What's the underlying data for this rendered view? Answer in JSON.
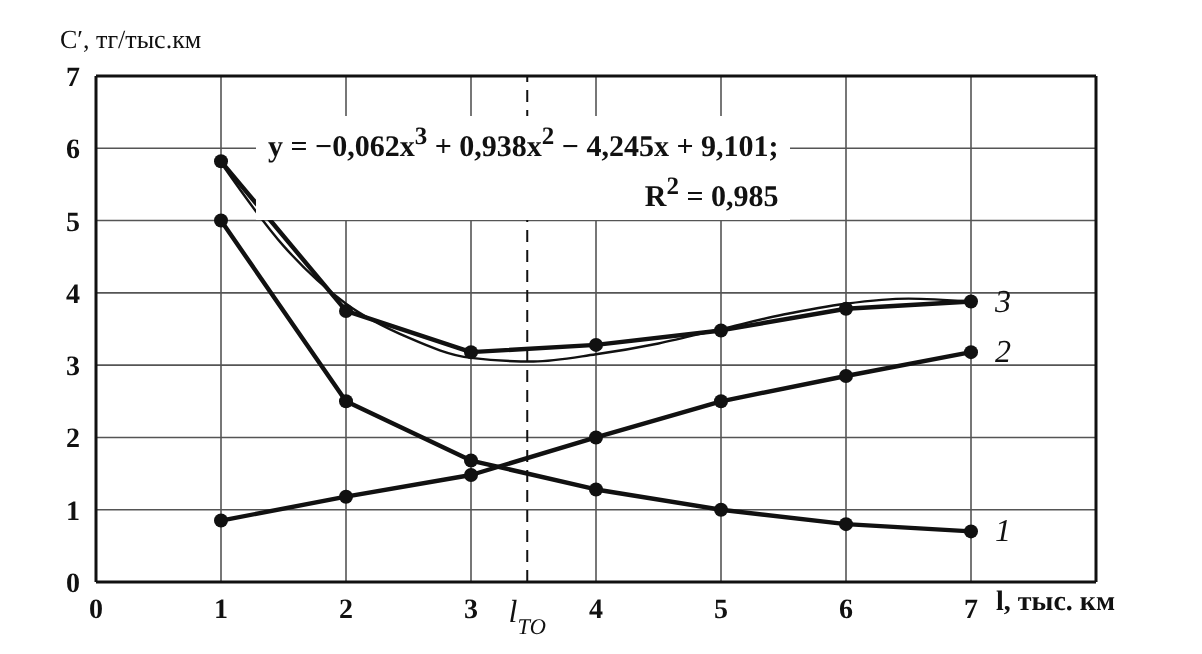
{
  "chart_data": {
    "type": "line",
    "ylabel": "C′, тг/тыс.км",
    "xlabel": "l, тыс. км",
    "annotations": [
      "y = −0,062x$^{3}$ + 0,938x$^{2}$ − 4,245x + 9,101;",
      "R$^{2}$ = 0,985"
    ],
    "x": [
      1,
      2,
      3,
      4,
      5,
      6,
      7
    ],
    "series": [
      {
        "name": "1",
        "color": "#111111",
        "values": [
          5.0,
          2.5,
          1.68,
          1.28,
          1.0,
          0.8,
          0.7
        ]
      },
      {
        "name": "2",
        "color": "#111111",
        "values": [
          0.85,
          1.18,
          1.48,
          2.0,
          2.5,
          2.85,
          3.18
        ]
      },
      {
        "name": "3",
        "color": "#111111",
        "values": [
          5.82,
          3.75,
          3.18,
          3.28,
          3.48,
          3.78,
          3.88
        ]
      },
      {
        "color": "#111111",
        "type": "line",
        "marker": "none",
        "x": [
          1,
          1.5,
          2,
          2.5,
          3,
          3.5,
          4,
          4.5,
          5,
          5.5,
          6,
          6.5,
          7
        ],
        "values": [
          5.8,
          4.65,
          3.85,
          3.38,
          3.1,
          3.05,
          3.15,
          3.3,
          3.5,
          3.7,
          3.85,
          3.92,
          3.88
        ]
      }
    ],
    "ref_lines": [
      {
        "axis": "x",
        "value": 3.45,
        "label": "l$_{ТО}$",
        "line_style": "dashed",
        "color": "#111111"
      }
    ],
    "xlim": [
      0,
      8
    ],
    "xticks": [
      0,
      1,
      2,
      3,
      4,
      5,
      6,
      7
    ],
    "ylim": [
      0,
      7
    ],
    "yticks": [
      0,
      1,
      2,
      3,
      4,
      5,
      6,
      7
    ],
    "grid": true,
    "marker": "circle",
    "line_style": "solid"
  }
}
